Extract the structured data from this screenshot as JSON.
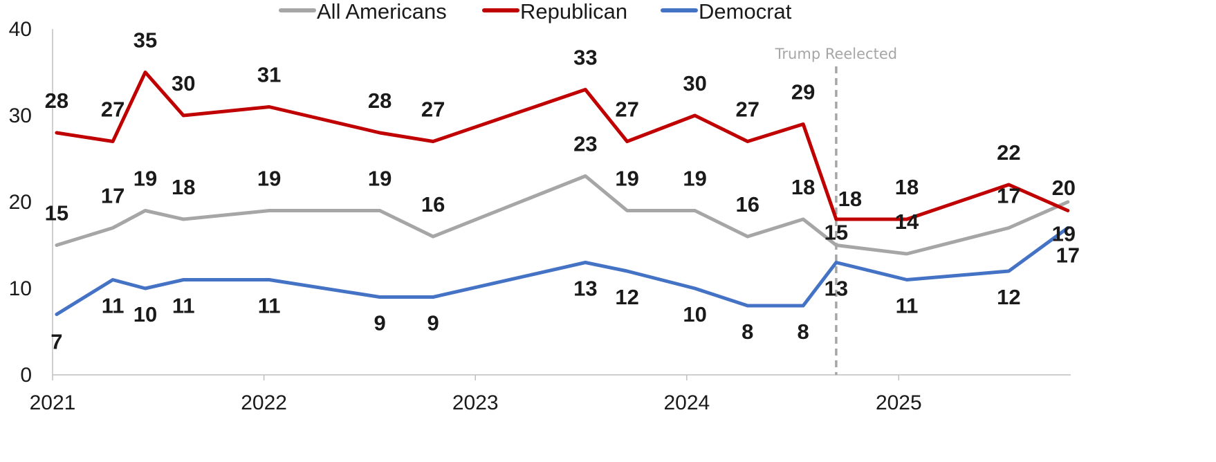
{
  "chart_data": {
    "type": "line",
    "title": "",
    "xlabel": "",
    "ylabel": "",
    "ylim": [
      0,
      40
    ],
    "yticks": [
      0,
      10,
      20,
      30,
      40
    ],
    "xlim": [
      "2021-01-01",
      "2025-10-25"
    ],
    "xticks": [
      {
        "date": "2021-01-01",
        "label": "2021"
      },
      {
        "date": "2022-01-01",
        "label": "2022"
      },
      {
        "date": "2023-01-01",
        "label": "2023"
      },
      {
        "date": "2024-01-01",
        "label": "2024"
      },
      {
        "date": "2025-01-01",
        "label": "2025"
      }
    ],
    "grid": false,
    "legend_position": "top",
    "x": [
      "2021-01-08",
      "2021-04-15",
      "2021-06-10",
      "2021-08-15",
      "2022-01-10",
      "2022-07-20",
      "2022-10-20",
      "2023-07-10",
      "2023-09-20",
      "2024-01-15",
      "2024-04-15",
      "2024-07-20",
      "2024-09-15",
      "2025-01-15",
      "2025-07-10",
      "2025-10-20"
    ],
    "series": [
      {
        "name": "All Americans",
        "color": "#a6a6a6",
        "values": [
          15,
          17,
          19,
          18,
          19,
          19,
          16,
          23,
          19,
          19,
          16,
          18,
          15,
          14,
          17,
          20
        ]
      },
      {
        "name": "Republican",
        "color": "#c00000",
        "values": [
          28,
          27,
          35,
          30,
          31,
          28,
          27,
          33,
          27,
          30,
          27,
          29,
          18,
          18,
          22,
          19
        ]
      },
      {
        "name": "Democrat",
        "color": "#4472c4",
        "values": [
          7,
          11,
          10,
          11,
          11,
          9,
          9,
          13,
          12,
          10,
          8,
          8,
          13,
          11,
          12,
          17
        ]
      }
    ],
    "annotations": [
      {
        "text": "Trump Reelected",
        "x": "2024-09-15",
        "style": "dashed-vertical-line",
        "color": "#a6a6a6"
      }
    ]
  }
}
